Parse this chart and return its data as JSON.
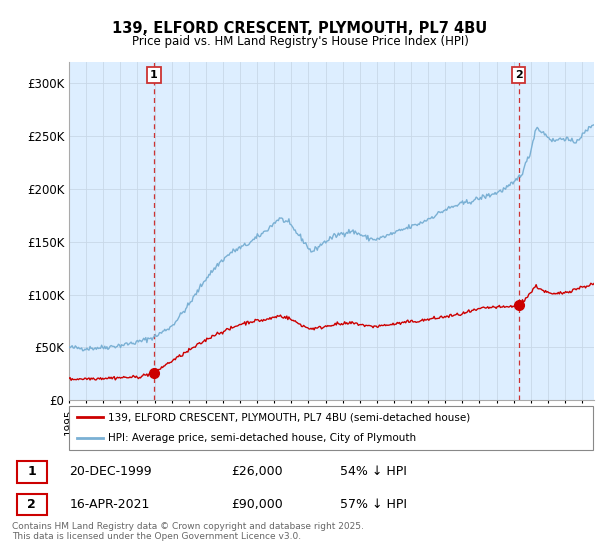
{
  "title": "139, ELFORD CRESCENT, PLYMOUTH, PL7 4BU",
  "subtitle": "Price paid vs. HM Land Registry's House Price Index (HPI)",
  "ylim": [
    0,
    320000
  ],
  "yticks": [
    0,
    50000,
    100000,
    150000,
    200000,
    250000,
    300000
  ],
  "ytick_labels": [
    "£0",
    "£50K",
    "£100K",
    "£150K",
    "£200K",
    "£250K",
    "£300K"
  ],
  "xlim_start": 1995.0,
  "xlim_end": 2025.7,
  "purchase1": {
    "date_num": 1999.97,
    "price": 26000,
    "label": "1"
  },
  "purchase2": {
    "date_num": 2021.29,
    "price": 90000,
    "label": "2"
  },
  "red_color": "#cc0000",
  "blue_color": "#7ab0d4",
  "vline_color": "#cc3333",
  "grid_color": "#c8d8e8",
  "chart_bg_color": "#ddeeff",
  "background_color": "#ffffff",
  "legend1": "139, ELFORD CRESCENT, PLYMOUTH, PL7 4BU (semi-detached house)",
  "legend2": "HPI: Average price, semi-detached house, City of Plymouth",
  "footer": "Contains HM Land Registry data © Crown copyright and database right 2025.\nThis data is licensed under the Open Government Licence v3.0.",
  "table_rows": [
    {
      "num": "1",
      "date": "20-DEC-1999",
      "price": "£26,000",
      "pct": "54% ↓ HPI"
    },
    {
      "num": "2",
      "date": "16-APR-2021",
      "price": "£90,000",
      "pct": "57% ↓ HPI"
    }
  ],
  "hpi_key_years": [
    1995.0,
    1996.0,
    1997.0,
    1998.0,
    1999.0,
    2000.0,
    2001.0,
    2002.0,
    2003.0,
    2003.8,
    2004.5,
    2005.5,
    2006.5,
    2007.3,
    2007.8,
    2008.5,
    2009.2,
    2009.8,
    2010.5,
    2011.0,
    2011.5,
    2012.0,
    2012.5,
    2013.0,
    2013.5,
    2014.0,
    2014.8,
    2015.5,
    2016.2,
    2017.0,
    2017.8,
    2018.5,
    2019.2,
    2020.0,
    2020.5,
    2021.0,
    2021.5,
    2022.0,
    2022.3,
    2022.8,
    2023.3,
    2024.0,
    2024.5,
    2025.0,
    2025.7
  ],
  "hpi_key_values": [
    50000,
    49000,
    50000,
    52000,
    55000,
    60000,
    70000,
    90000,
    115000,
    130000,
    140000,
    148000,
    160000,
    172000,
    168000,
    155000,
    140000,
    148000,
    155000,
    158000,
    160000,
    157000,
    153000,
    152000,
    155000,
    158000,
    163000,
    167000,
    173000,
    180000,
    185000,
    188000,
    192000,
    196000,
    200000,
    205000,
    215000,
    235000,
    258000,
    252000,
    245000,
    248000,
    243000,
    250000,
    262000
  ],
  "red_key_years": [
    1995.0,
    1996.0,
    1997.0,
    1998.0,
    1999.0,
    1999.97,
    2000.5,
    2001.5,
    2002.5,
    2003.5,
    2004.5,
    2005.0,
    2005.8,
    2006.5,
    2007.3,
    2007.8,
    2008.5,
    2009.0,
    2009.5,
    2010.0,
    2010.5,
    2011.0,
    2011.5,
    2012.0,
    2012.5,
    2013.0,
    2013.5,
    2014.0,
    2014.8,
    2015.5,
    2016.2,
    2017.0,
    2017.8,
    2018.5,
    2019.2,
    2019.8,
    2020.5,
    2021.0,
    2021.29,
    2021.8,
    2022.3,
    2022.8,
    2023.3,
    2024.0,
    2025.0,
    2025.7
  ],
  "red_key_values": [
    20000,
    20500,
    21000,
    21500,
    22000,
    26000,
    32000,
    42000,
    52000,
    62000,
    68000,
    72000,
    75000,
    76000,
    80000,
    78000,
    72000,
    68000,
    68000,
    70000,
    72000,
    72000,
    73000,
    72000,
    70000,
    70000,
    71000,
    72000,
    74000,
    75000,
    77000,
    79000,
    81000,
    84000,
    87000,
    88000,
    88000,
    89000,
    90000,
    98000,
    108000,
    103000,
    100000,
    102000,
    107000,
    110000
  ]
}
